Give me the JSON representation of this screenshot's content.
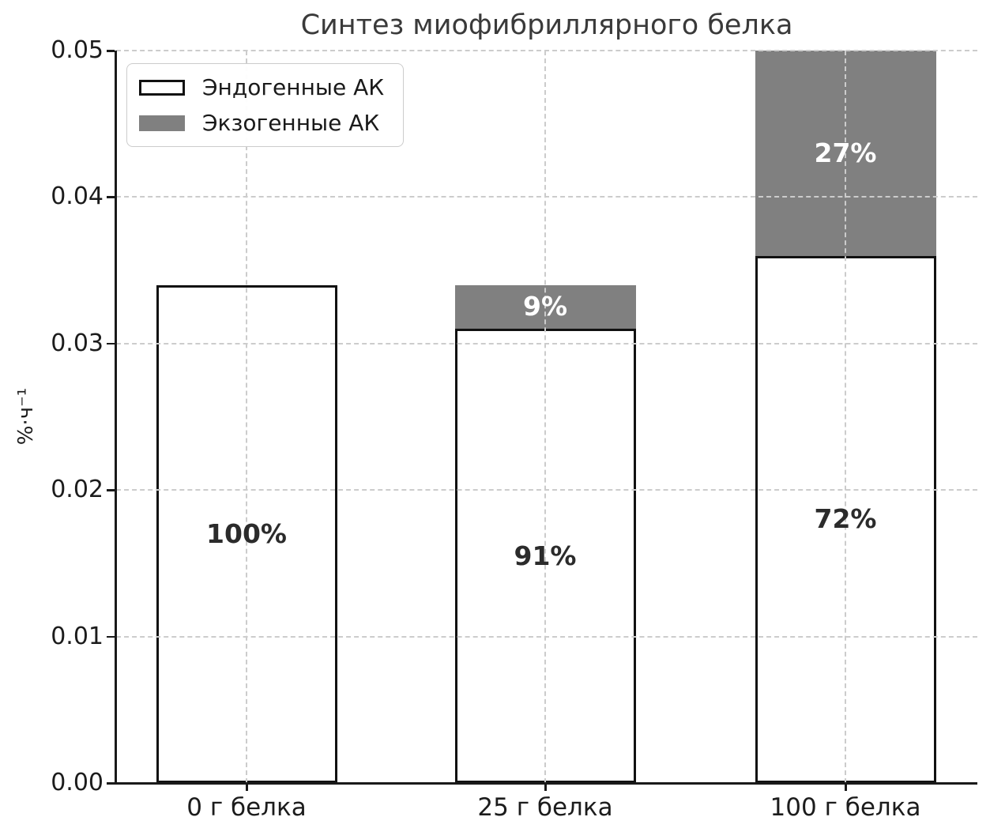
{
  "chart_data": {
    "type": "bar",
    "stacked": true,
    "title": "Синтез миофибриллярного белка",
    "xlabel": "",
    "ylabel": "%·ч⁻¹",
    "categories": [
      "0 г белка",
      "25 г белка",
      "100 г белка"
    ],
    "series": [
      {
        "name": "Эндогенные АК",
        "color": "#ffffff",
        "edge_color": "#111111",
        "values": [
          0.034,
          0.031,
          0.036
        ],
        "labels": [
          "100%",
          "91%",
          "72%"
        ],
        "label_color": "#2b2b2b"
      },
      {
        "name": "Экзогенные АК",
        "color": "#808080",
        "edge_color": "none",
        "values": [
          0,
          0.003,
          0.014
        ],
        "labels": [
          "",
          "9%",
          "27%"
        ],
        "label_color": "#ffffff"
      }
    ],
    "bar_totals": [
      0.034,
      0.034,
      0.05
    ],
    "ylim": [
      0,
      0.05
    ],
    "yticks": [
      "0.00",
      "0.01",
      "0.02",
      "0.03",
      "0.04",
      "0.05"
    ],
    "grid": {
      "on": true,
      "style": "dashed",
      "color": "#cccccc",
      "above_bars": true
    },
    "legend": {
      "position": "upper left"
    },
    "axis_color": "#1a1a1a",
    "background": "#ffffff"
  }
}
